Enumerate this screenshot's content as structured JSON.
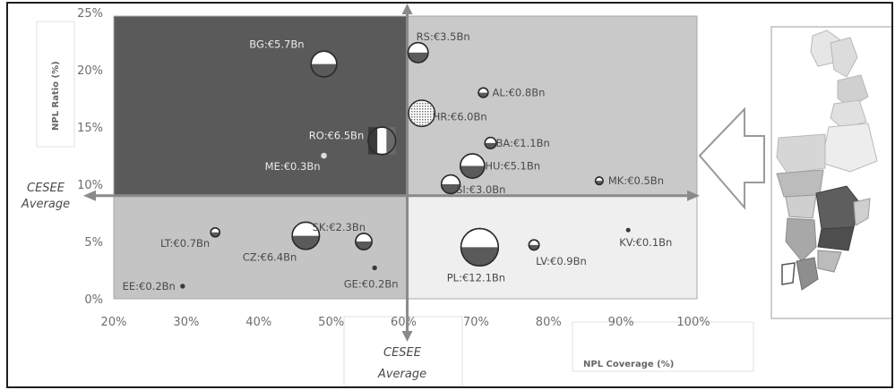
{
  "chart_data": {
    "type": "scatter",
    "xlabel": "NPL Coverage (%)",
    "ylabel": "NPL Ratio (%)",
    "xlim": [
      20,
      100
    ],
    "ylim": [
      0,
      25
    ],
    "x_ticks": [
      "20%",
      "30%",
      "40%",
      "50%",
      "60%",
      "70%",
      "80%",
      "90%",
      "100%"
    ],
    "y_ticks": [
      "0%",
      "5%",
      "10%",
      "15%",
      "20%",
      "25%"
    ],
    "average_lines": {
      "x": 60.5,
      "y": 9,
      "x_label": [
        "CESEE",
        "Average"
      ],
      "y_label": [
        "CESEE",
        "Average"
      ]
    },
    "quadrant_colors": {
      "top_left": "#5a5a5a",
      "top_right": "#c9c9c9",
      "bottom_left": "#c4c4c4",
      "bottom_right": "#efefef"
    },
    "points": [
      {
        "label": "BG:€5.7Bn",
        "x": 49,
        "y": 20.5,
        "npl_bn": 5.7
      },
      {
        "label": "RO:€6.5Bn",
        "x": 57,
        "y": 13.8,
        "npl_bn": 6.5
      },
      {
        "label": "ME:€0.3Bn",
        "x": 49,
        "y": 12.5,
        "npl_bn": 0.3
      },
      {
        "label": "RS:€3.5Bn",
        "x": 62,
        "y": 21.5,
        "npl_bn": 3.5
      },
      {
        "label": "AL:€0.8Bn",
        "x": 71,
        "y": 18,
        "npl_bn": 0.8
      },
      {
        "label": "HR:€6.0Bn",
        "x": 62.5,
        "y": 16.2,
        "npl_bn": 6.0
      },
      {
        "label": "BA:€1.1Bn",
        "x": 72,
        "y": 13.6,
        "npl_bn": 1.1
      },
      {
        "label": "HU:€5.1Bn",
        "x": 69.5,
        "y": 11.6,
        "npl_bn": 5.1
      },
      {
        "label": "SI:€3.0Bn",
        "x": 66.5,
        "y": 10,
        "npl_bn": 3.0
      },
      {
        "label": "MK:€0.5Bn",
        "x": 87,
        "y": 10.3,
        "npl_bn": 0.5
      },
      {
        "label": "LT:€0.7Bn",
        "x": 34,
        "y": 5.8,
        "npl_bn": 0.7
      },
      {
        "label": "CZ:€6.4Bn",
        "x": 46.5,
        "y": 5.5,
        "npl_bn": 6.4
      },
      {
        "label": "SK:€2.3Bn",
        "x": 54.5,
        "y": 5,
        "npl_bn": 2.3
      },
      {
        "label": "GE:€0.2Bn",
        "x": 56,
        "y": 2.7,
        "npl_bn": 0.2
      },
      {
        "label": "EE:€0.2Bn",
        "x": 29.5,
        "y": 1.1,
        "npl_bn": 0.2
      },
      {
        "label": "PL:€12.1Bn",
        "x": 70.5,
        "y": 4.5,
        "npl_bn": 12.1
      },
      {
        "label": "LV:€0.9Bn",
        "x": 78,
        "y": 4.7,
        "npl_bn": 0.9
      },
      {
        "label": "KV:€0.1Bn",
        "x": 91,
        "y": 6,
        "npl_bn": 0.1
      }
    ]
  }
}
